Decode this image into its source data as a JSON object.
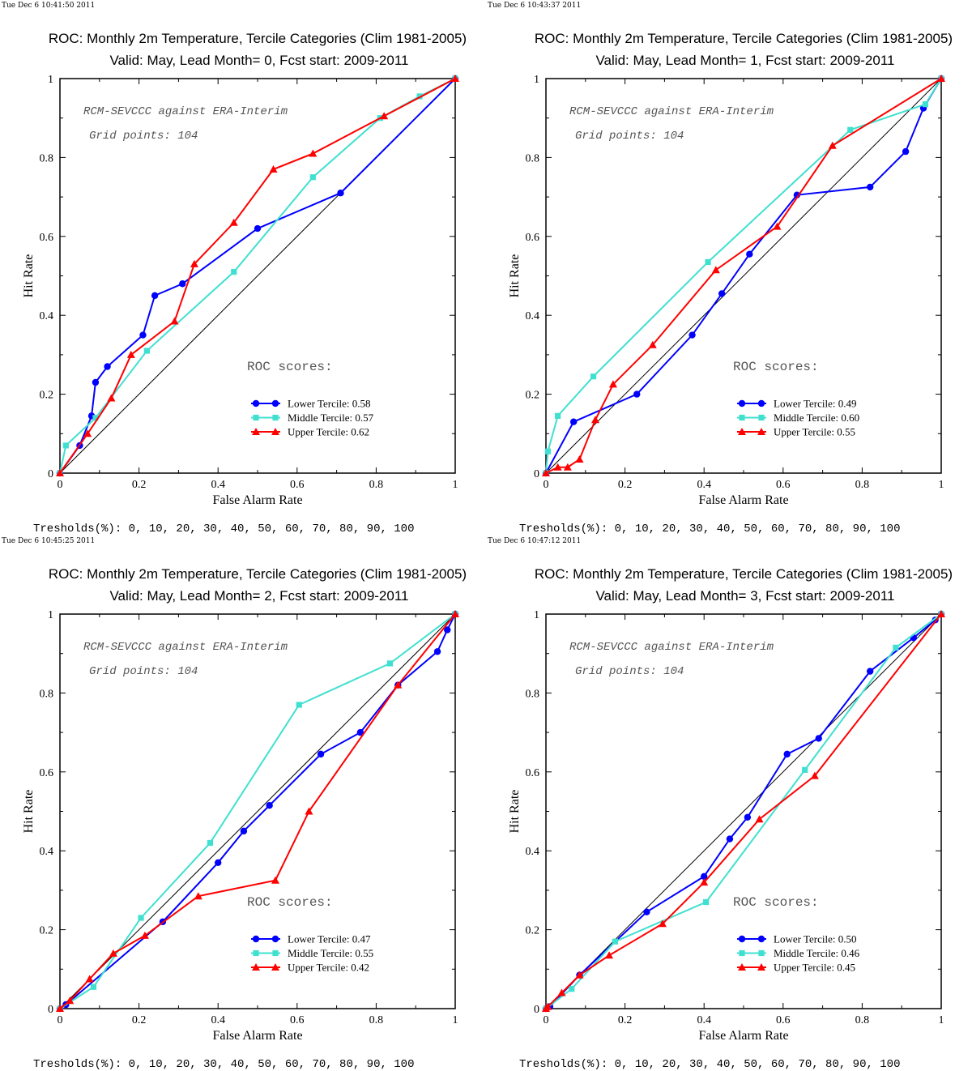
{
  "chart_data": [
    {
      "type": "line",
      "timestamp": "Tue Dec  6 10:41:50 2011",
      "title": "ROC: Monthly 2m Temperature, Tercile Categories (Clim 1981-2005)",
      "subtitle": "Valid: May, Lead Month= 0, Fcst start: 2009-2011",
      "xlabel": "False Alarm Rate",
      "ylabel": "Hit Rate",
      "xlim": [
        0,
        1
      ],
      "ylim": [
        0,
        1
      ],
      "xticks": [
        "0",
        "0.2",
        "0.4",
        "0.6",
        "0.8",
        "1"
      ],
      "yticks": [
        "0",
        "0.2",
        "0.4",
        "0.6",
        "0.8",
        "1"
      ],
      "annotation_1": "RCM-SEVCCC against ERA-Interim",
      "annotation_2": "Grid points:  104",
      "scores_heading": "ROC scores:",
      "thresholds": "Tresholds(%): 0, 10, 20, 30, 40, 50, 60, 70, 80, 90, 100",
      "legend_position": "lower-right",
      "series": [
        {
          "name": "Lower Tercile: 0.58",
          "color": "#0000ff",
          "marker": "circle",
          "x": [
            0,
            0.05,
            0.08,
            0.09,
            0.12,
            0.21,
            0.24,
            0.31,
            0.5,
            0.71,
            1
          ],
          "y": [
            0,
            0.07,
            0.145,
            0.23,
            0.27,
            0.35,
            0.45,
            0.48,
            0.62,
            0.71,
            1
          ]
        },
        {
          "name": "Middle Tercile: 0.57",
          "color": "#40e0d0",
          "marker": "square",
          "x": [
            0,
            0.015,
            0.09,
            0.22,
            0.44,
            0.64,
            0.81,
            0.91,
            1
          ],
          "y": [
            0,
            0.07,
            0.14,
            0.31,
            0.51,
            0.75,
            0.9,
            0.955,
            1
          ]
        },
        {
          "name": "Upper Tercile: 0.62",
          "color": "#ff0000",
          "marker": "triangle",
          "x": [
            0,
            0.07,
            0.13,
            0.18,
            0.29,
            0.34,
            0.44,
            0.54,
            0.64,
            0.82,
            1
          ],
          "y": [
            0,
            0.1,
            0.19,
            0.3,
            0.385,
            0.53,
            0.635,
            0.77,
            0.81,
            0.905,
            1
          ]
        }
      ]
    },
    {
      "type": "line",
      "timestamp": "Tue Dec  6 10:43:37 2011",
      "title": "ROC: Monthly 2m Temperature, Tercile Categories (Clim 1981-2005)",
      "subtitle": "Valid: May, Lead Month= 1, Fcst start: 2009-2011",
      "xlabel": "False Alarm Rate",
      "ylabel": "Hit Rate",
      "xlim": [
        0,
        1
      ],
      "ylim": [
        0,
        1
      ],
      "xticks": [
        "0",
        "0.2",
        "0.4",
        "0.6",
        "0.8",
        "1"
      ],
      "yticks": [
        "0",
        "0.2",
        "0.4",
        "0.6",
        "0.8",
        "1"
      ],
      "annotation_1": "RCM-SEVCCC against ERA-Interim",
      "annotation_2": "Grid points:  104",
      "scores_heading": "ROC scores:",
      "thresholds": "Tresholds(%): 0, 10, 20, 30, 40, 50, 60, 70, 80, 90, 100",
      "legend_position": "lower-right",
      "series": [
        {
          "name": "Lower Tercile: 0.49",
          "color": "#0000ff",
          "marker": "circle",
          "x": [
            0,
            0.07,
            0.23,
            0.37,
            0.445,
            0.515,
            0.635,
            0.82,
            0.91,
            0.955,
            1
          ],
          "y": [
            0,
            0.13,
            0.2,
            0.35,
            0.455,
            0.555,
            0.705,
            0.725,
            0.815,
            0.925,
            1
          ]
        },
        {
          "name": "Middle Tercile: 0.60",
          "color": "#40e0d0",
          "marker": "square",
          "x": [
            0,
            0.005,
            0.03,
            0.12,
            0.41,
            0.77,
            0.96,
            1
          ],
          "y": [
            0,
            0.055,
            0.145,
            0.245,
            0.535,
            0.87,
            0.935,
            1
          ]
        },
        {
          "name": "Upper Tercile: 0.55",
          "color": "#ff0000",
          "marker": "triangle",
          "x": [
            0,
            0.03,
            0.055,
            0.085,
            0.125,
            0.17,
            0.27,
            0.43,
            0.585,
            0.725,
            1
          ],
          "y": [
            0,
            0.015,
            0.015,
            0.035,
            0.135,
            0.225,
            0.325,
            0.515,
            0.625,
            0.83,
            1
          ]
        }
      ]
    },
    {
      "type": "line",
      "timestamp": "Tue Dec  6 10:45:25 2011",
      "title": "ROC: Monthly 2m Temperature, Tercile Categories (Clim 1981-2005)",
      "subtitle": "Valid: May, Lead Month= 2, Fcst start: 2009-2011",
      "xlabel": "False Alarm Rate",
      "ylabel": "Hit Rate",
      "xlim": [
        0,
        1
      ],
      "ylim": [
        0,
        1
      ],
      "xticks": [
        "0",
        "0.2",
        "0.4",
        "0.6",
        "0.8",
        "1"
      ],
      "yticks": [
        "0",
        "0.2",
        "0.4",
        "0.6",
        "0.8",
        "1"
      ],
      "annotation_1": "RCM-SEVCCC against ERA-Interim",
      "annotation_2": "Grid points:  104",
      "scores_heading": "ROC scores:",
      "thresholds": "Tresholds(%): 0, 10, 20, 30, 40, 50, 60, 70, 80, 90, 100",
      "legend_position": "lower-right",
      "series": [
        {
          "name": "Lower Tercile: 0.47",
          "color": "#0000ff",
          "marker": "circle",
          "x": [
            0,
            0.015,
            0.26,
            0.4,
            0.465,
            0.53,
            0.66,
            0.76,
            0.855,
            0.955,
            0.98,
            1
          ],
          "y": [
            0,
            0.01,
            0.22,
            0.37,
            0.45,
            0.515,
            0.645,
            0.7,
            0.82,
            0.905,
            0.96,
            1
          ]
        },
        {
          "name": "Middle Tercile: 0.55",
          "color": "#40e0d0",
          "marker": "square",
          "x": [
            0,
            0.085,
            0.205,
            0.38,
            0.605,
            0.835,
            1
          ],
          "y": [
            0,
            0.055,
            0.23,
            0.42,
            0.77,
            0.875,
            1
          ]
        },
        {
          "name": "Upper Tercile: 0.42",
          "color": "#ff0000",
          "marker": "triangle",
          "x": [
            0,
            0.025,
            0.075,
            0.135,
            0.215,
            0.35,
            0.545,
            0.63,
            0.855,
            1
          ],
          "y": [
            0,
            0.02,
            0.075,
            0.14,
            0.185,
            0.285,
            0.325,
            0.5,
            0.82,
            1
          ]
        }
      ]
    },
    {
      "type": "line",
      "timestamp": "Tue Dec  6 10:47:12 2011",
      "title": "ROC: Monthly 2m Temperature, Tercile Categories (Clim 1981-2005)",
      "subtitle": "Valid: May, Lead Month= 3, Fcst start: 2009-2011",
      "xlabel": "False Alarm Rate",
      "ylabel": "Hit Rate",
      "xlim": [
        0,
        1
      ],
      "ylim": [
        0,
        1
      ],
      "xticks": [
        "0",
        "0.2",
        "0.4",
        "0.6",
        "0.8",
        "1"
      ],
      "yticks": [
        "0",
        "0.2",
        "0.4",
        "0.6",
        "0.8",
        "1"
      ],
      "annotation_1": "RCM-SEVCCC against ERA-Interim",
      "annotation_2": "Grid points:  104",
      "scores_heading": "ROC scores:",
      "thresholds": "Tresholds(%): 0, 10, 20, 30, 40, 50, 60, 70, 80, 90, 100",
      "legend_position": "lower-right",
      "series": [
        {
          "name": "Lower Tercile: 0.50",
          "color": "#0000ff",
          "marker": "circle",
          "x": [
            0,
            0.01,
            0.085,
            0.255,
            0.4,
            0.465,
            0.51,
            0.61,
            0.69,
            0.82,
            0.93,
            0.985,
            1
          ],
          "y": [
            0,
            0.005,
            0.085,
            0.245,
            0.335,
            0.43,
            0.485,
            0.645,
            0.685,
            0.855,
            0.94,
            0.985,
            1
          ]
        },
        {
          "name": "Middle Tercile: 0.46",
          "color": "#40e0d0",
          "marker": "square",
          "x": [
            0,
            0.065,
            0.175,
            0.405,
            0.655,
            0.885,
            1
          ],
          "y": [
            0,
            0.05,
            0.17,
            0.27,
            0.605,
            0.915,
            1
          ]
        },
        {
          "name": "Upper Tercile: 0.45",
          "color": "#ff0000",
          "marker": "triangle",
          "x": [
            0,
            0.005,
            0.04,
            0.085,
            0.16,
            0.295,
            0.4,
            0.54,
            0.68,
            1
          ],
          "y": [
            0,
            0.005,
            0.04,
            0.085,
            0.135,
            0.215,
            0.32,
            0.48,
            0.59,
            1
          ]
        }
      ]
    }
  ]
}
